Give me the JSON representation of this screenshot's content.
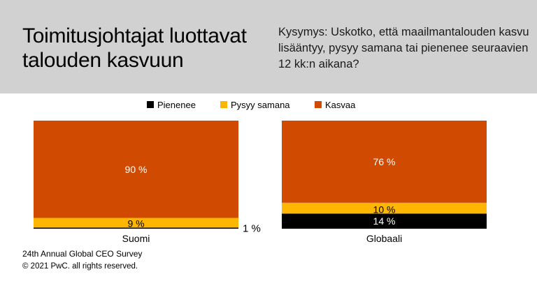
{
  "header": {
    "title": "Toimitusjohtajat luottavat talouden kasvuun",
    "question": "Kysymys: Uskotko, että maailmantalouden kasvu lisääntyy, pysyy samana tai pienenee seuraavien 12 kk:n aikana?"
  },
  "footer": {
    "source": "24th Annual Global CEO Survey",
    "copyright": "© 2021 PwC. all rights reserved."
  },
  "colors": {
    "background_header": "#d1d1d1",
    "Pienenee": "#000000",
    "Pysyy samana": "#ffb600",
    "Kasvaa": "#d04a02"
  },
  "chart_data": {
    "type": "bar",
    "stacked": true,
    "orientation": "vertical",
    "categories": [
      "Suomi",
      "Globaali"
    ],
    "series": [
      {
        "name": "Pienenee",
        "values": [
          1,
          14
        ],
        "labels": [
          "1 %",
          "14 %"
        ],
        "color": "#000000"
      },
      {
        "name": "Pysyy samana",
        "values": [
          9,
          10
        ],
        "labels": [
          "9 %",
          "10 %"
        ],
        "color": "#ffb600"
      },
      {
        "name": "Kasvaa",
        "values": [
          90,
          76
        ],
        "labels": [
          "90 %",
          "76 %"
        ],
        "color": "#d04a02"
      }
    ],
    "legend_position": "top",
    "ylim": [
      0,
      100
    ],
    "unit": "%"
  }
}
